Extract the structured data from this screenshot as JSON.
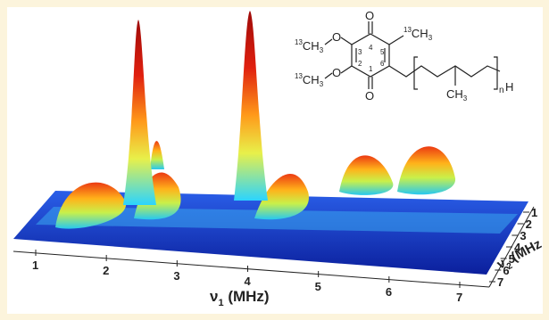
{
  "plot": {
    "x_axis": {
      "symbol": "ν",
      "index": "1",
      "unit": " (MHz)",
      "ticks": [
        "1",
        "2",
        "3",
        "4",
        "5",
        "6",
        "7"
      ]
    },
    "y_axis": {
      "symbol": "ν",
      "index": "2",
      "unit": " (MHz",
      "ticks": [
        "1",
        "2",
        "3",
        "4",
        "5",
        "6",
        "7"
      ]
    }
  },
  "molecule": {
    "methoxy_top": {
      "isotope": "13",
      "group": "CH",
      "count": "3"
    },
    "methoxy_bottom": {
      "isotope": "13",
      "group": "CH",
      "count": "3"
    },
    "methyl": {
      "isotope": "13",
      "group": "CH",
      "count": "3"
    },
    "chain_methyl": {
      "group": "CH",
      "count": "3"
    },
    "oxygens": [
      "O",
      "O",
      "O",
      "O"
    ],
    "ring_numbers": [
      "1",
      "2",
      "3",
      "4",
      "5",
      "6"
    ],
    "repeat": "n",
    "terminal": "H"
  }
}
